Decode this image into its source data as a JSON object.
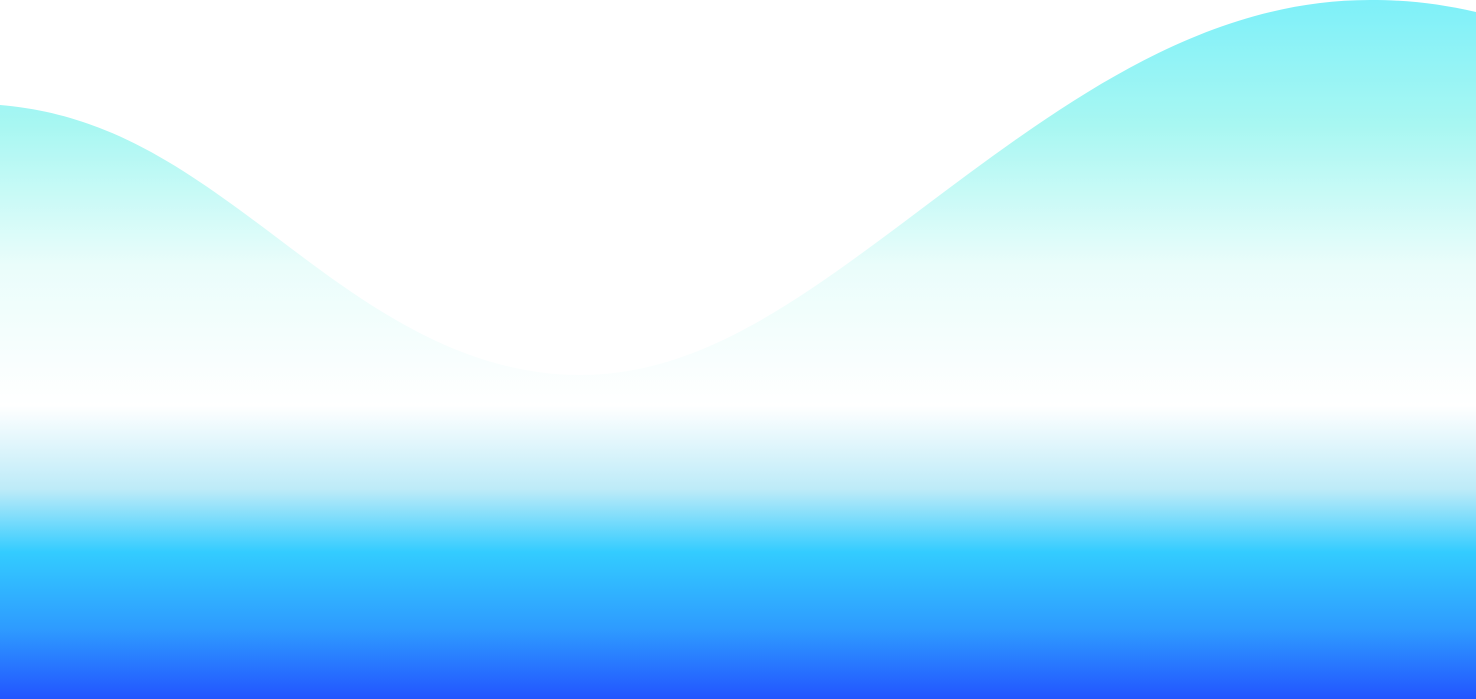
{
  "background": {
    "description_colors": {
      "top_cyan": "#7EF0F9",
      "mid_cyan": "#A8F7F2",
      "white": "#FFFFFF",
      "bright_cyan": "#33CCFF",
      "deep_blue": "#2255FF"
    }
  }
}
